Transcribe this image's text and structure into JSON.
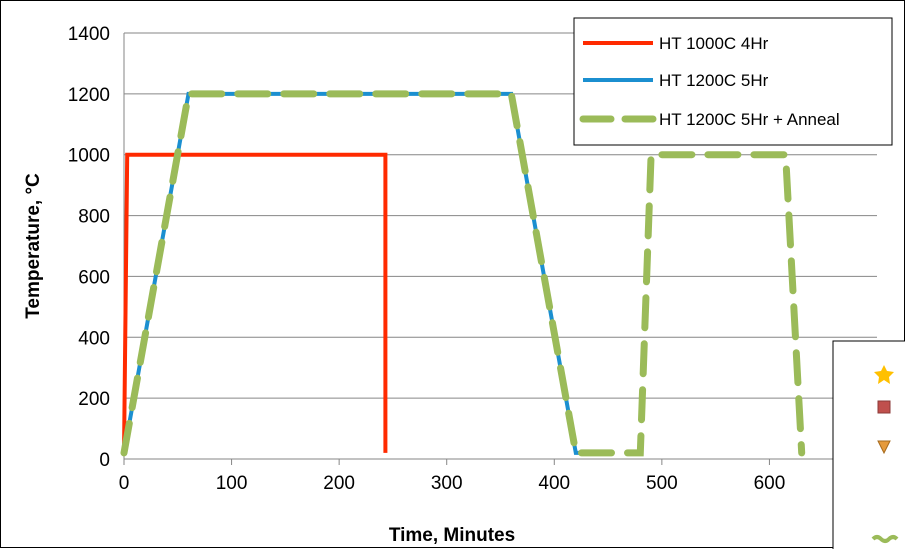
{
  "chart_data": {
    "type": "line",
    "xlabel": "Time, Minutes",
    "ylabel": "Temperature, °C",
    "xlim": [
      0,
      700
    ],
    "ylim": [
      0,
      1400
    ],
    "x_ticks": [
      0,
      100,
      200,
      300,
      400,
      500,
      600
    ],
    "y_ticks": [
      0,
      200,
      400,
      600,
      800,
      1000,
      1200,
      1400
    ],
    "grid": "horizontal",
    "legend_position": "top-right",
    "series": [
      {
        "name": "HT 1000C 4Hr",
        "color": "#ff2a00",
        "style": "solid",
        "points": [
          [
            0,
            20
          ],
          [
            3,
            1000
          ],
          [
            243,
            1000
          ],
          [
            243,
            20
          ]
        ]
      },
      {
        "name": "HT 1200C 5Hr",
        "color": "#1b8fd0",
        "style": "solid",
        "points": [
          [
            0,
            20
          ],
          [
            60,
            1200
          ],
          [
            360,
            1200
          ],
          [
            420,
            20
          ],
          [
            445,
            20
          ]
        ]
      },
      {
        "name": "HT 1200C 5Hr + Anneal",
        "color": "#9bbb59",
        "style": "dashed",
        "points": [
          [
            0,
            20
          ],
          [
            60,
            1200
          ],
          [
            360,
            1200
          ],
          [
            420,
            20
          ],
          [
            480,
            20
          ],
          [
            490,
            1000
          ],
          [
            615,
            1000
          ],
          [
            630,
            20
          ]
        ]
      }
    ],
    "inset_legend_icons": [
      "star-icon",
      "square-icon",
      "triangle-down-icon",
      "wave-icon"
    ]
  }
}
